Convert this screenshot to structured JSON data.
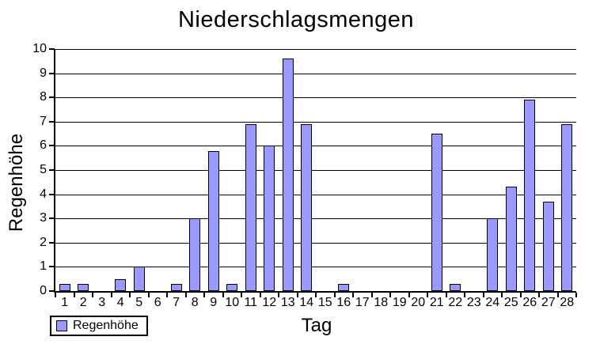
{
  "chart_data": {
    "type": "bar",
    "title": "Niederschlagsmengen",
    "xlabel": "Tag",
    "ylabel": "Regenhöhe",
    "categories": [
      "1",
      "2",
      "3",
      "4",
      "5",
      "6",
      "7",
      "8",
      "9",
      "10",
      "11",
      "12",
      "13",
      "14",
      "15",
      "16",
      "17",
      "18",
      "19",
      "20",
      "21",
      "22",
      "23",
      "24",
      "25",
      "26",
      "27",
      "28"
    ],
    "series": [
      {
        "name": "Regenhöhe",
        "values": [
          0.3,
          0.3,
          0,
          0.5,
          1.0,
          0,
          0.3,
          3.0,
          5.8,
          0.3,
          6.9,
          6.0,
          9.6,
          6.9,
          0,
          0.3,
          0,
          0,
          0,
          0,
          6.5,
          0.3,
          0,
          3.0,
          4.3,
          7.9,
          3.7,
          6.9
        ]
      }
    ],
    "ylim": [
      0,
      10
    ],
    "ytick_step": 1,
    "grid": "horizontal-only",
    "legend_position": "bottom-left",
    "bar_color": "#9999FF",
    "bar_border_color": "#000000",
    "axis_color": "#000000",
    "background_color": "#FFFFFF"
  }
}
